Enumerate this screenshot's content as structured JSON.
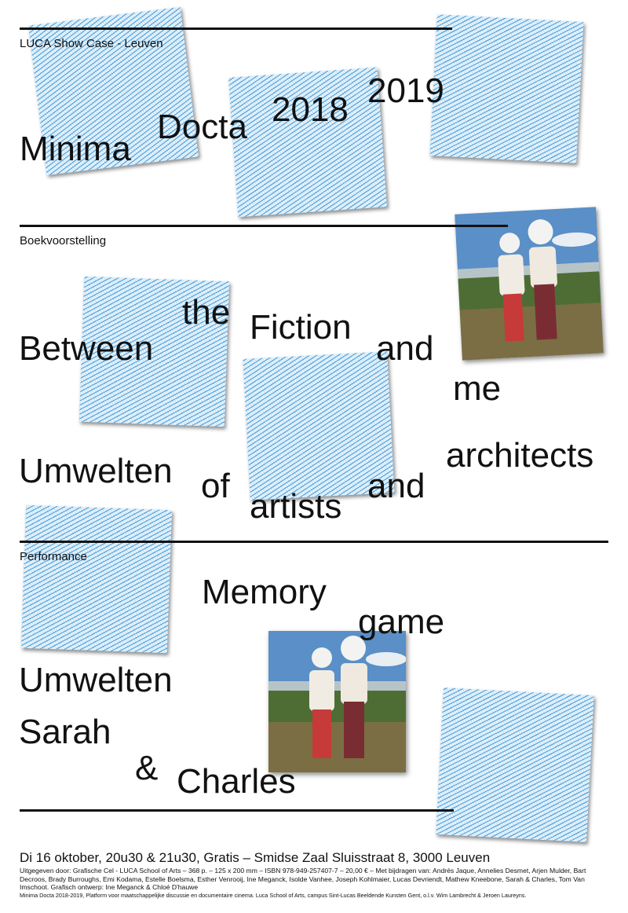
{
  "header": {
    "label": "LUCA Show Case - Leuven",
    "title_words": [
      "Minima",
      "Docta",
      "2018",
      "2019"
    ]
  },
  "book": {
    "label": "Boekvoorstelling",
    "title_words": [
      "Between",
      "the",
      "Fiction",
      "and",
      "me"
    ],
    "subtitle_words": [
      "Umwelten",
      "of",
      "artists",
      "and",
      "architects"
    ]
  },
  "performance": {
    "label": "Performance",
    "title_words": [
      "Memory",
      "game"
    ],
    "names": [
      "Umwelten",
      "Sarah",
      "&",
      "Charles"
    ]
  },
  "footer": {
    "event": "Di 16 oktober, 20u30 & 21u30, Gratis – Smidse Zaal Sluisstraat 8, 3000 Leuven",
    "credits": "Uitgegeven door: Grafische Cel - LUCA School of Arts – 368 p. – 125 x 200 mm – ISBN 978-949-257407-7 – 20,00 € – Met bijdragen van: Andrés Jaque, Annelies Desmet, Arjen Mulder, Bart Decroos, Brady Burroughs, Emi Kodama, Estelle Boelsma, Esther Venrooij, Ine Meganck, Isolde Vanhee, Joseph Kohlmaier, Lucas Devriendt, Mathew Kneebone, Sarah & Charles, Tom Van Imschoot. Grafisch ontwerp: Ine Meganck & Chloé D'hauwe",
    "colophon": "Minima Docta 2018-2019, Platform voor maatschappelijke discussie en documentaire cinema. Luca School of Arts, campus Sint-Lucas Beeldende Kunsten Gent, o.l.v. Wim Lambrecht & Jeroen Laureyns."
  },
  "colors": {
    "text": "#111111",
    "background": "#ffffff",
    "tile_pattern": "#4098d6"
  }
}
